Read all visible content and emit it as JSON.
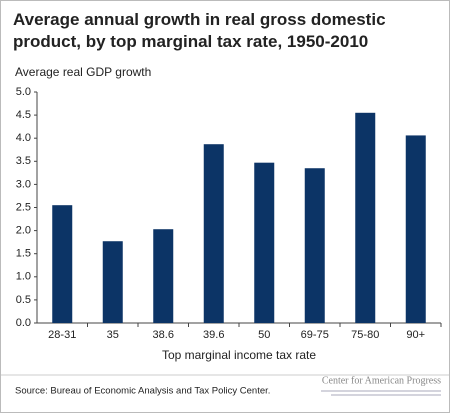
{
  "chart_data": {
    "type": "bar",
    "title": "Average annual growth in real gross domestic product, by top marginal tax rate, 1950-2010",
    "y_label": "Average real GDP growth",
    "x_label": "Top marginal income tax rate",
    "source": "Source: Bureau of Economic Analysis and Tax Policy Center.",
    "logo": "Center for American Progress",
    "categories": [
      "28-31",
      "35",
      "38.6",
      "39.6",
      "50",
      "69-75",
      "75-80",
      "90+"
    ],
    "values": [
      2.55,
      1.77,
      2.03,
      3.87,
      3.47,
      3.35,
      4.55,
      4.06
    ],
    "color": "#0c3466",
    "ylim": [
      0,
      5
    ],
    "yticks": [
      {
        "value": 0,
        "label": "0.0"
      },
      {
        "value": 0.5,
        "label": "0.5"
      },
      {
        "value": 1,
        "label": "1.0"
      },
      {
        "value": 1.5,
        "label": "1.5"
      },
      {
        "value": 2,
        "label": "2.0"
      },
      {
        "value": 2.5,
        "label": "2.5"
      },
      {
        "value": 3,
        "label": "3.0"
      },
      {
        "value": 3.5,
        "label": "3.5"
      },
      {
        "value": 4,
        "label": "4.0"
      },
      {
        "value": 4.5,
        "label": "4.5"
      },
      {
        "value": 5,
        "label": "5.0"
      }
    ],
    "grid": false
  }
}
